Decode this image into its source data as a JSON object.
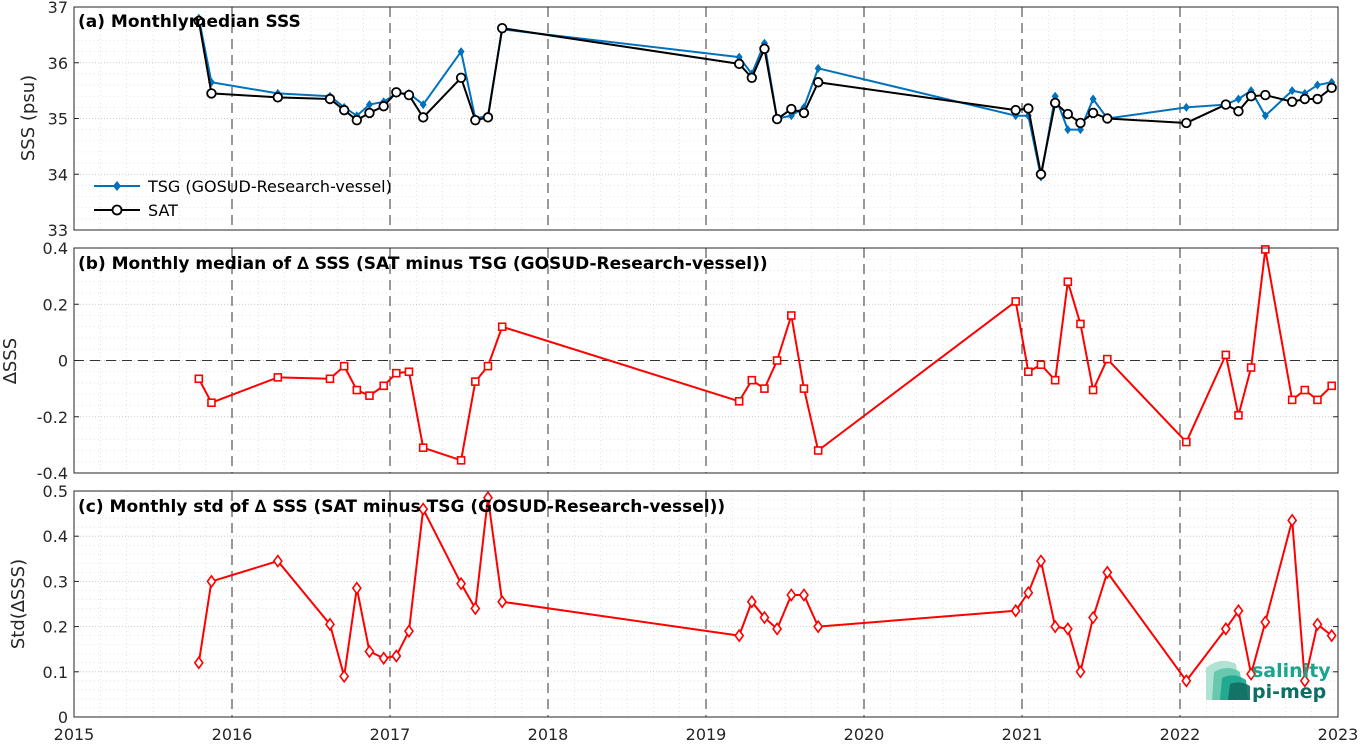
{
  "chart_data": [
    {
      "type": "line",
      "title": "(a) Monthlymedian SSS",
      "xlabel": "",
      "ylabel": "SSS (psu)",
      "xlim": [
        2015,
        2023
      ],
      "ylim": [
        33,
        37
      ],
      "yticks": [
        33,
        34,
        35,
        36,
        37
      ],
      "grid": true,
      "legend": "lower-left",
      "series": [
        {
          "name": "TSG (GOSUD-Research-vessel)",
          "color": "#0072bd",
          "marker": "filled-diamond",
          "x": [
            2015.79,
            2015.87,
            2016.29,
            2016.62,
            2016.71,
            2016.79,
            2016.87,
            2016.96,
            2017.04,
            2017.12,
            2017.21,
            2017.45,
            2017.54,
            2017.62,
            2017.71,
            2019.21,
            2019.29,
            2019.37,
            2019.45,
            2019.54,
            2019.62,
            2019.71,
            2020.96,
            2021.04,
            2021.12,
            2021.21,
            2021.29,
            2021.37,
            2021.45,
            2021.54,
            2022.04,
            2022.29,
            2022.37,
            2022.45,
            2022.54,
            2022.71,
            2022.79,
            2022.87,
            2022.96
          ],
          "y": [
            36.8,
            35.65,
            35.45,
            35.4,
            35.2,
            35.05,
            35.25,
            35.3,
            35.45,
            35.45,
            35.25,
            36.2,
            35.0,
            35.05,
            36.6,
            36.1,
            35.8,
            36.35,
            35.0,
            35.05,
            35.2,
            35.9,
            35.05,
            35.05,
            33.95,
            35.4,
            34.8,
            34.8,
            35.35,
            35.0,
            35.2,
            35.25,
            35.35,
            35.5,
            35.05,
            35.5,
            35.45,
            35.6,
            35.65
          ]
        },
        {
          "name": "SAT",
          "color": "#000000",
          "marker": "open-circle",
          "x": [
            2015.79,
            2015.87,
            2016.29,
            2016.62,
            2016.71,
            2016.79,
            2016.87,
            2016.96,
            2017.04,
            2017.12,
            2017.21,
            2017.45,
            2017.54,
            2017.62,
            2017.71,
            2019.21,
            2019.29,
            2019.37,
            2019.45,
            2019.54,
            2019.62,
            2019.71,
            2020.96,
            2021.04,
            2021.12,
            2021.21,
            2021.29,
            2021.37,
            2021.45,
            2021.54,
            2022.04,
            2022.29,
            2022.37,
            2022.45,
            2022.54,
            2022.71,
            2022.79,
            2022.87,
            2022.96
          ],
          "y": [
            36.75,
            35.45,
            35.38,
            35.35,
            35.15,
            34.97,
            35.1,
            35.22,
            35.47,
            35.42,
            35.02,
            35.73,
            34.97,
            35.02,
            36.62,
            35.98,
            35.73,
            36.25,
            34.99,
            35.17,
            35.1,
            35.65,
            35.15,
            35.18,
            34.0,
            35.28,
            35.08,
            34.92,
            35.1,
            35.0,
            34.92,
            35.25,
            35.13,
            35.4,
            35.42,
            35.3,
            35.35,
            35.35,
            35.55
          ]
        }
      ]
    },
    {
      "type": "line",
      "title": "(b) Monthly median of ∆ SSS (SAT minus TSG (GOSUD-Research-vessel))",
      "xlabel": "",
      "ylabel": "∆SSS",
      "xlim": [
        2015,
        2023
      ],
      "ylim": [
        -0.4,
        0.4
      ],
      "yticks": [
        -0.4,
        -0.2,
        0,
        0.2,
        0.4
      ],
      "ytick_labels": [
        "-0.4",
        "-0.2",
        "0",
        "0.2",
        "0.4"
      ],
      "grid": true,
      "zero_line": true,
      "series": [
        {
          "color": "#ff0000",
          "marker": "open-square",
          "x": [
            2015.79,
            2015.87,
            2016.29,
            2016.62,
            2016.71,
            2016.79,
            2016.87,
            2016.96,
            2017.04,
            2017.12,
            2017.21,
            2017.45,
            2017.54,
            2017.62,
            2017.71,
            2019.21,
            2019.29,
            2019.37,
            2019.45,
            2019.54,
            2019.62,
            2019.71,
            2020.96,
            2021.04,
            2021.12,
            2021.21,
            2021.29,
            2021.37,
            2021.45,
            2021.54,
            2022.04,
            2022.29,
            2022.37,
            2022.45,
            2022.54,
            2022.71,
            2022.79,
            2022.87,
            2022.96
          ],
          "y": [
            -0.065,
            -0.15,
            -0.06,
            -0.065,
            -0.02,
            -0.105,
            -0.125,
            -0.09,
            -0.045,
            -0.04,
            -0.31,
            -0.355,
            -0.075,
            -0.02,
            0.12,
            -0.145,
            -0.07,
            -0.1,
            0.0,
            0.16,
            -0.1,
            -0.32,
            0.21,
            -0.04,
            -0.015,
            -0.07,
            0.28,
            0.13,
            -0.105,
            0.005,
            -0.29,
            0.02,
            -0.195,
            -0.025,
            0.395,
            -0.14,
            -0.105,
            -0.14,
            -0.09
          ]
        }
      ]
    },
    {
      "type": "line",
      "title": "(c) Monthly std of ∆ SSS (SAT minus TSG (GOSUD-Research-vessel))",
      "xlabel": "",
      "ylabel": "Std(∆SSS)",
      "xlim": [
        2015,
        2023
      ],
      "ylim": [
        0,
        0.5
      ],
      "yticks": [
        0,
        0.1,
        0.2,
        0.3,
        0.4,
        0.5
      ],
      "ytick_labels": [
        "0",
        "0.1",
        "0.2",
        "0.3",
        "0.4",
        "0.5"
      ],
      "xticks": [
        2015,
        2016,
        2017,
        2018,
        2019,
        2020,
        2021,
        2022,
        2023
      ],
      "grid": true,
      "series": [
        {
          "color": "#ff0000",
          "marker": "open-diamond",
          "x": [
            2015.79,
            2015.87,
            2016.29,
            2016.62,
            2016.71,
            2016.79,
            2016.87,
            2016.96,
            2017.04,
            2017.12,
            2017.21,
            2017.45,
            2017.54,
            2017.62,
            2017.71,
            2019.21,
            2019.29,
            2019.37,
            2019.45,
            2019.54,
            2019.62,
            2019.71,
            2020.96,
            2021.04,
            2021.12,
            2021.21,
            2021.29,
            2021.37,
            2021.45,
            2021.54,
            2022.04,
            2022.29,
            2022.37,
            2022.45,
            2022.54,
            2022.71,
            2022.79,
            2022.87,
            2022.96
          ],
          "y": [
            0.12,
            0.3,
            0.345,
            0.205,
            0.09,
            0.285,
            0.145,
            0.13,
            0.135,
            0.19,
            0.46,
            0.295,
            0.24,
            0.485,
            0.255,
            0.18,
            0.255,
            0.22,
            0.195,
            0.27,
            0.27,
            0.2,
            0.235,
            0.275,
            0.345,
            0.2,
            0.195,
            0.1,
            0.22,
            0.32,
            0.08,
            0.195,
            0.235,
            0.095,
            0.21,
            0.435,
            0.08,
            0.205,
            0.18
          ]
        }
      ]
    }
  ],
  "logo": {
    "line1": "salinity",
    "line2": "pi-mep",
    "colors": [
      "#1aa58e",
      "#0f6e63"
    ]
  }
}
